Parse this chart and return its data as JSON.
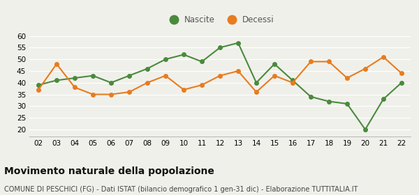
{
  "years": [
    "02",
    "03",
    "04",
    "05",
    "06",
    "07",
    "08",
    "09",
    "10",
    "11",
    "12",
    "13",
    "14",
    "15",
    "16",
    "17",
    "18",
    "19",
    "20",
    "21",
    "22"
  ],
  "nascite": [
    39,
    41,
    42,
    43,
    40,
    43,
    46,
    50,
    52,
    49,
    55,
    57,
    40,
    48,
    41,
    34,
    32,
    31,
    20,
    33,
    40
  ],
  "decessi": [
    37,
    48,
    38,
    35,
    35,
    36,
    40,
    43,
    37,
    39,
    43,
    45,
    36,
    43,
    40,
    49,
    49,
    42,
    46,
    51,
    44
  ],
  "nascite_color": "#4a8a3c",
  "decessi_color": "#e87c1e",
  "background_color": "#f0f0eb",
  "grid_color": "#ffffff",
  "ylim": [
    17,
    62
  ],
  "yticks": [
    20,
    25,
    30,
    35,
    40,
    45,
    50,
    55,
    60
  ],
  "title": "Movimento naturale della popolazione",
  "subtitle": "COMUNE DI PESCHICI (FG) - Dati ISTAT (bilancio demografico 1 gen-31 dic) - Elaborazione TUTTITALIA.IT",
  "legend_nascite": "Nascite",
  "legend_decessi": "Decessi",
  "title_fontsize": 10,
  "subtitle_fontsize": 7,
  "marker_size": 4,
  "linewidth": 1.5
}
